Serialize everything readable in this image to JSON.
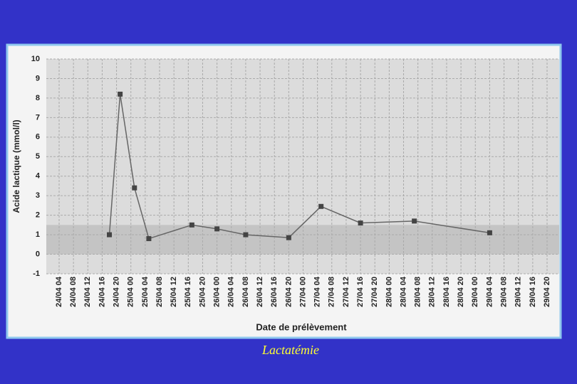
{
  "chart_data": {
    "type": "line",
    "caption": "Lactatémie",
    "x_label": "Date de prélèvement",
    "y_label": "Acide lactique (mmol/l)",
    "x": [
      "24/04 18",
      "24/04 21",
      "25/04 01",
      "25/04 05",
      "25/04 17",
      "26/04 00",
      "26/04 08",
      "26/04 20",
      "27/04 05",
      "27/04 16",
      "28/04 07",
      "29/04 04"
    ],
    "series": [
      {
        "color": "#666666",
        "values": [
          1.0,
          8.2,
          3.4,
          0.8,
          1.5,
          1.3,
          1.0,
          0.85,
          2.45,
          1.6,
          1.7,
          1.1
        ]
      }
    ],
    "reference_band": [
      0,
      1.5
    ],
    "ylim": [
      -1,
      10
    ],
    "yticks": [
      -1,
      0,
      1,
      2,
      3,
      4,
      5,
      6,
      7,
      8,
      9,
      10
    ],
    "xticks": [
      "24/04 04",
      "24/04 08",
      "24/04 12",
      "24/04 16",
      "24/04 20",
      "25/04 00",
      "25/04 04",
      "25/04 08",
      "25/04 12",
      "25/04 16",
      "25/04 20",
      "26/04 00",
      "26/04 04",
      "26/04 08",
      "26/04 12",
      "26/04 16",
      "26/04 20",
      "27/04 00",
      "27/04 04",
      "27/04 08",
      "27/04 12",
      "27/04 16",
      "27/04 20",
      "28/04 00",
      "28/04 04",
      "28/04 08",
      "28/04 12",
      "28/04 16",
      "28/04 20",
      "29/04 00",
      "29/04 04",
      "29/04 08",
      "29/04 12",
      "29/04 16",
      "29/04 20"
    ],
    "grid": true
  }
}
